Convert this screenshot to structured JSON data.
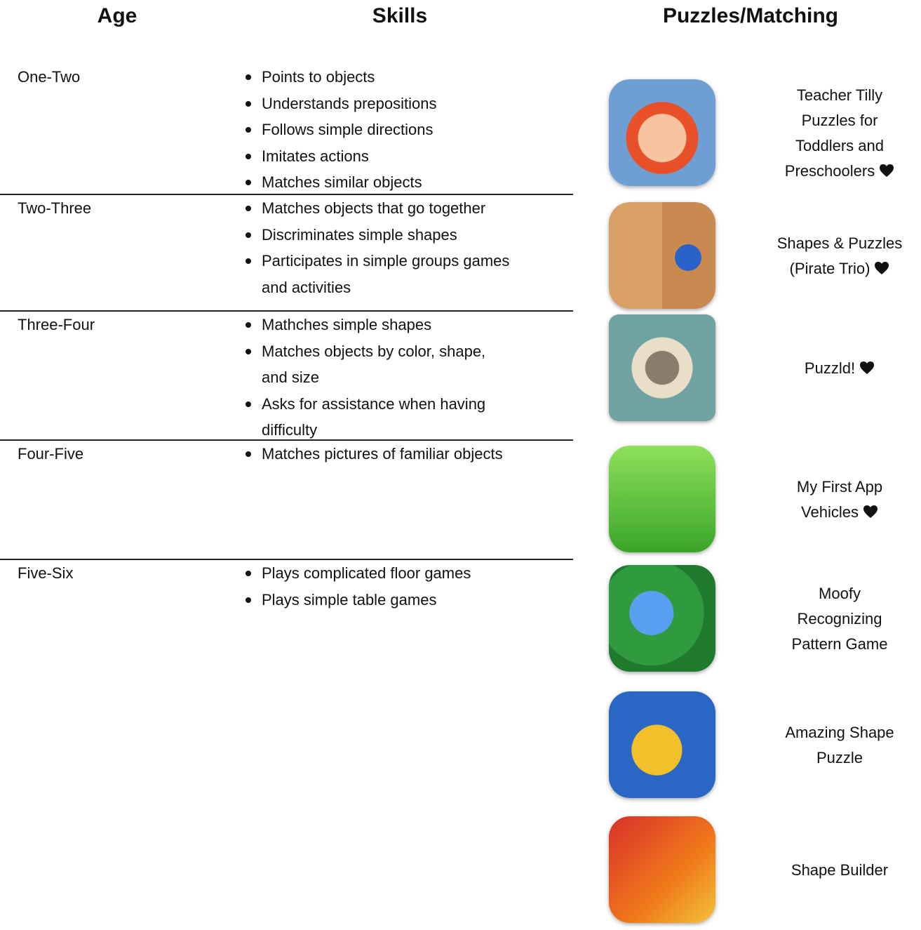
{
  "header": {
    "age": "Age",
    "skills": "Skills",
    "apps": "Puzzles/Matching"
  },
  "rows": [
    {
      "age": "One-Two",
      "skills": [
        [
          "Points to objects"
        ],
        [
          "Understands prepositions"
        ],
        [
          "Follows simple directions"
        ],
        [
          "Imitates actions"
        ],
        [
          "Matches similar objects"
        ]
      ]
    },
    {
      "age": "Two-Three",
      "skills": [
        [
          "Matches objects that go together"
        ],
        [
          "Discriminates simple shapes"
        ],
        [
          "Participates in simple groups games",
          "and activities"
        ]
      ]
    },
    {
      "age": "Three-Four",
      "skills": [
        [
          "Mathches simple shapes"
        ],
        [
          "Matches objects by color, shape,",
          "and size"
        ],
        [
          "Asks for assistance when having",
          "difficulty"
        ]
      ]
    },
    {
      "age": "Four-Five",
      "skills": [
        [
          "Matches pictures of familiar objects"
        ]
      ]
    },
    {
      "age": "Five-Six",
      "skills": [
        [
          "Plays complicated floor games"
        ],
        [
          "Plays simple table games"
        ]
      ]
    }
  ],
  "apps": [
    {
      "name_lines": [
        "Teacher Tilly",
        "Puzzles for",
        "Toddlers and",
        "Preschoolers"
      ],
      "favorite": true
    },
    {
      "name_lines": [
        "Shapes & Puzzles",
        "(Pirate Trio)"
      ],
      "favorite": true
    },
    {
      "name_lines": [
        "Puzzld!"
      ],
      "favorite": true
    },
    {
      "name_lines": [
        "My First App",
        "Vehicles"
      ],
      "favorite": true
    },
    {
      "name_lines": [
        "Moofy",
        "Recognizing",
        "Pattern Game"
      ],
      "favorite": false
    },
    {
      "name_lines": [
        "Amazing Shape",
        "Puzzle"
      ],
      "favorite": false
    },
    {
      "name_lines": [
        "Shape Builder"
      ],
      "favorite": false
    }
  ]
}
